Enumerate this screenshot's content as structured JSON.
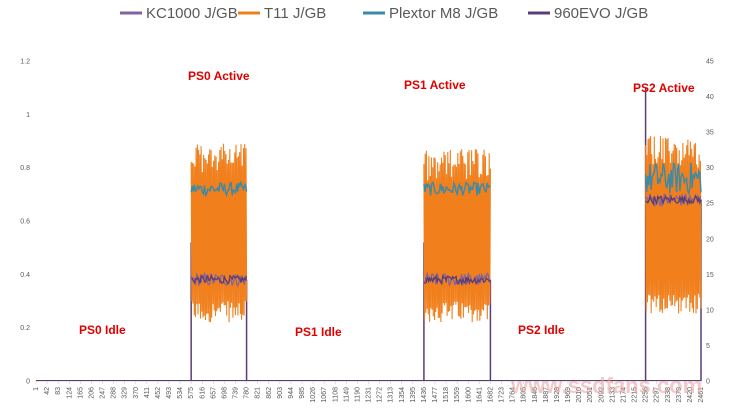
{
  "chart_data": {
    "type": "line",
    "series": [
      {
        "name": "KC1000 J/GB",
        "color": "#8064a2",
        "axis": "left"
      },
      {
        "name": "T11 J/GB",
        "color": "#f07f1c",
        "axis": "left"
      },
      {
        "name": "Plextor M8 J/GB",
        "color": "#3a8aa8",
        "axis": "left"
      },
      {
        "name": "960EVO J/GB",
        "color": "#5a3d78",
        "axis": "right"
      }
    ],
    "left_axis": {
      "ylim": [
        0,
        1.2
      ],
      "ticks": [
        "0",
        "0.2",
        "0.4",
        "0.6",
        "0.8",
        "1",
        "1.2"
      ]
    },
    "right_axis": {
      "ylim": [
        0,
        45
      ],
      "ticks": [
        "0",
        "5",
        "10",
        "15",
        "20",
        "25",
        "30",
        "35",
        "40",
        "45"
      ]
    },
    "x_ticks": [
      "1",
      "42",
      "83",
      "124",
      "165",
      "206",
      "247",
      "288",
      "329",
      "370",
      "411",
      "452",
      "493",
      "534",
      "575",
      "616",
      "657",
      "698",
      "739",
      "780",
      "821",
      "862",
      "903",
      "944",
      "985",
      "1026",
      "1067",
      "1108",
      "1149",
      "1190",
      "1231",
      "1272",
      "1313",
      "1354",
      "1395",
      "1436",
      "1477",
      "1518",
      "1559",
      "1600",
      "1641",
      "1682",
      "1723",
      "1764",
      "1805",
      "1846",
      "1887",
      "1928",
      "1969",
      "2010",
      "2051",
      "2092",
      "2133",
      "2174",
      "2215",
      "2256",
      "2297",
      "2338",
      "2379",
      "2420",
      "2461"
    ],
    "phases": [
      {
        "start": 575,
        "end": 780,
        "orange_low": 0.22,
        "orange_high": 0.9,
        "teal": 0.72,
        "purple": 0.38
      },
      {
        "start": 1436,
        "end": 1682,
        "orange_low": 0.22,
        "orange_high": 0.87,
        "teal": 0.72,
        "purple": 0.38
      },
      {
        "start": 2256,
        "end": 2461,
        "orange_low": 0.25,
        "orange_high": 0.92,
        "teal": 0.76,
        "purple": 0.68
      }
    ],
    "grid": false,
    "legend_position": "top"
  },
  "annotations": {
    "ps0_active": "PS0 Active",
    "ps1_active": "PS1 Active",
    "ps2_active": "PS2 Active",
    "ps0_idle": "PS0 Idle",
    "ps1_idle": "PS1 Idle",
    "ps2_idle": "PS2 Idle"
  },
  "watermark": "www.ssdfans.com"
}
